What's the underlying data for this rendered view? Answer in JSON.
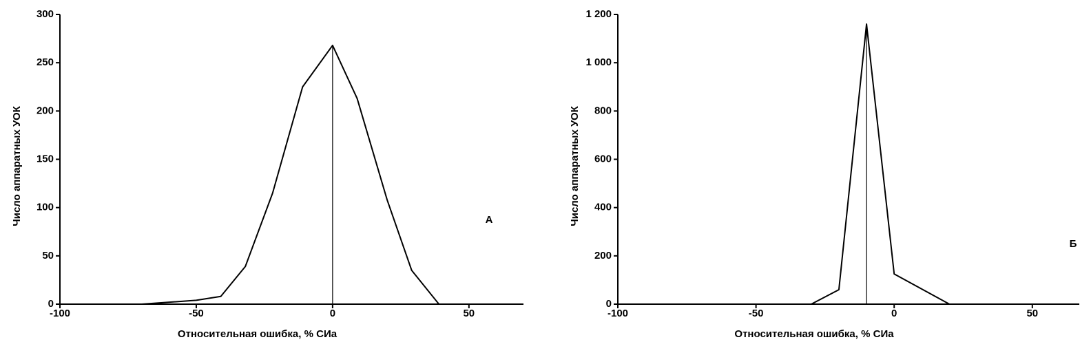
{
  "chart_data": [
    {
      "type": "line",
      "label": "А",
      "xlabel": "Относительная ошибка, % СИа",
      "ylabel": "Число аппаратных УОК",
      "x": [
        -100,
        -70,
        -50,
        -41,
        -32,
        -22,
        -11,
        0,
        9,
        20,
        29,
        39
      ],
      "values": [
        0,
        0,
        4,
        8,
        39,
        115,
        225,
        268,
        213,
        108,
        35,
        0
      ],
      "vline": 0,
      "color": "#000000",
      "xlim": [
        -100,
        70
      ],
      "ylim": [
        0,
        300
      ],
      "xticks": [
        -100,
        -50,
        0,
        50
      ],
      "yticks": [
        0,
        50,
        100,
        150,
        200,
        250,
        300
      ]
    },
    {
      "type": "line",
      "label": "Б",
      "xlabel": "Относительная ошибка, % СИа",
      "ylabel": "Число аппаратных УОК",
      "x": [
        -100,
        -30,
        -20,
        -10,
        0,
        20
      ],
      "values": [
        0,
        0,
        60,
        1160,
        125,
        0
      ],
      "vline": -10,
      "color": "#000000",
      "xlim": [
        -100,
        67
      ],
      "ylim": [
        0,
        1200
      ],
      "xticks": [
        -100,
        -50,
        0,
        50
      ],
      "yticks": [
        0,
        200,
        400,
        600,
        800,
        {
          "value": 1000,
          "label": "1 000"
        },
        {
          "value": 1200,
          "label": "1 200"
        }
      ]
    }
  ]
}
